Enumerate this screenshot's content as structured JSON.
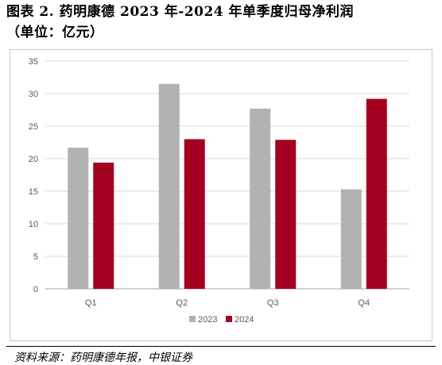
{
  "header": {
    "title": "图表 2. 药明康德 2023 年-2024 年单季度归母净利润",
    "unit": "（单位：亿元）"
  },
  "chart_data": {
    "type": "bar",
    "categories": [
      "Q1",
      "Q2",
      "Q3",
      "Q4"
    ],
    "series": [
      {
        "name": "2023",
        "values": [
          21.7,
          31.5,
          27.7,
          15.3
        ],
        "color": "#b2b2b2"
      },
      {
        "name": "2024",
        "values": [
          19.4,
          23.0,
          22.9,
          29.2
        ],
        "color": "#a50021"
      }
    ],
    "y_ticks": [
      0,
      5,
      10,
      15,
      20,
      25,
      30,
      35
    ],
    "ylim": [
      0,
      35
    ],
    "grid": true,
    "legend_position": "bottom"
  },
  "footer": {
    "source": "资料来源：药明康德年报，中银证券"
  }
}
